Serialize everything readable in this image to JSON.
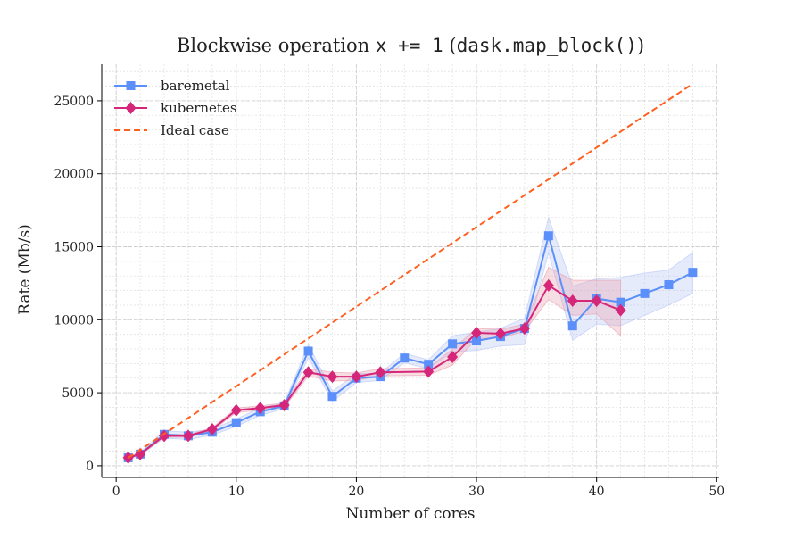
{
  "chart_data": {
    "type": "line",
    "title_parts": [
      "Blockwise operation ",
      "x += 1",
      " (",
      "dask.map_block()",
      ")"
    ],
    "xlabel": "Number of cores",
    "ylabel": "Rate (Mb/s)",
    "xlim": [
      -1.2,
      50.2
    ],
    "ylim": [
      -800,
      27500
    ],
    "xticks": [
      0,
      10,
      20,
      30,
      40,
      50
    ],
    "yticks": [
      0,
      5000,
      10000,
      15000,
      20000,
      25000
    ],
    "grid": true,
    "legend_placement": "top-left",
    "series": [
      {
        "name": "baremetal",
        "color": "#5b8ff9",
        "marker": "square",
        "x": [
          1,
          2,
          4,
          6,
          8,
          10,
          12,
          14,
          16,
          18,
          20,
          22,
          24,
          26,
          28,
          30,
          32,
          34,
          36,
          38,
          40,
          42,
          44,
          46,
          48
        ],
        "y": [
          550,
          800,
          2150,
          2050,
          2300,
          2950,
          3700,
          4100,
          7850,
          4750,
          6000,
          6100,
          7380,
          6950,
          8350,
          8550,
          8850,
          9400,
          15750,
          9580,
          11450,
          11200,
          11800,
          12400,
          13250
        ],
        "lower": [
          450,
          700,
          1900,
          1800,
          2100,
          2700,
          3450,
          3900,
          7400,
          4400,
          5700,
          5850,
          7050,
          6650,
          7800,
          7900,
          8200,
          8300,
          14600,
          8600,
          9700,
          9600,
          10300,
          11000,
          11800
        ],
        "upper": [
          650,
          900,
          2400,
          2300,
          2500,
          3200,
          3950,
          4300,
          8300,
          5100,
          6300,
          6350,
          7700,
          7250,
          8900,
          9150,
          9400,
          10100,
          17000,
          12300,
          12800,
          12900,
          13200,
          13400,
          14600
        ]
      },
      {
        "name": "kubernetes",
        "color": "#d6267a",
        "marker": "diamond",
        "x": [
          1,
          2,
          4,
          6,
          8,
          10,
          12,
          14,
          16,
          18,
          20,
          22,
          26,
          28,
          30,
          32,
          34,
          36,
          38,
          40,
          42
        ],
        "y": [
          550,
          800,
          2050,
          2050,
          2500,
          3800,
          3950,
          4150,
          6400,
          6100,
          6100,
          6400,
          6450,
          7450,
          9100,
          9050,
          9400,
          12350,
          11300,
          11300,
          10650
        ],
        "lower": [
          500,
          750,
          1950,
          1950,
          2400,
          3650,
          3800,
          4000,
          6150,
          5800,
          5850,
          6150,
          6200,
          6900,
          8700,
          8750,
          9200,
          11400,
          10300,
          10400,
          8900
        ],
        "upper": [
          600,
          850,
          2150,
          2150,
          2600,
          3950,
          4100,
          4300,
          6650,
          6400,
          6350,
          6650,
          6700,
          8000,
          9400,
          9350,
          9700,
          13600,
          12700,
          12700,
          12700
        ]
      },
      {
        "name": "Ideal case",
        "color": "#ff5f1f",
        "style": "dashed",
        "x": [
          1,
          48
        ],
        "y": [
          545,
          26160
        ]
      }
    ]
  }
}
